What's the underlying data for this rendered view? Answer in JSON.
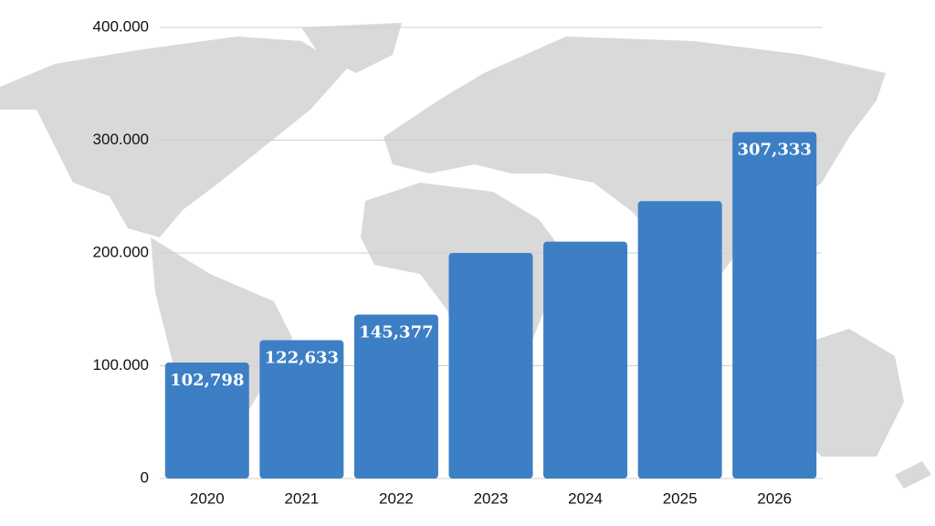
{
  "chart_data": {
    "type": "bar",
    "categories": [
      "2020",
      "2021",
      "2022",
      "2023",
      "2024",
      "2025",
      "2026"
    ],
    "values": [
      102798,
      122633,
      145377,
      200000,
      210000,
      246000,
      307333
    ],
    "value_labels": [
      "102,798",
      "122,633",
      "145,377",
      null,
      null,
      null,
      "307,333"
    ],
    "color": "#3d7fc4",
    "ylim": [
      0,
      400000
    ],
    "yticks": [
      0,
      {
        "value": 100000,
        "label": "100.000"
      },
      {
        "value": 200000,
        "label": "200.000"
      },
      {
        "value": 300000,
        "label": "300.000"
      },
      {
        "value": 400000,
        "label": "400.000"
      }
    ],
    "grid": true
  }
}
